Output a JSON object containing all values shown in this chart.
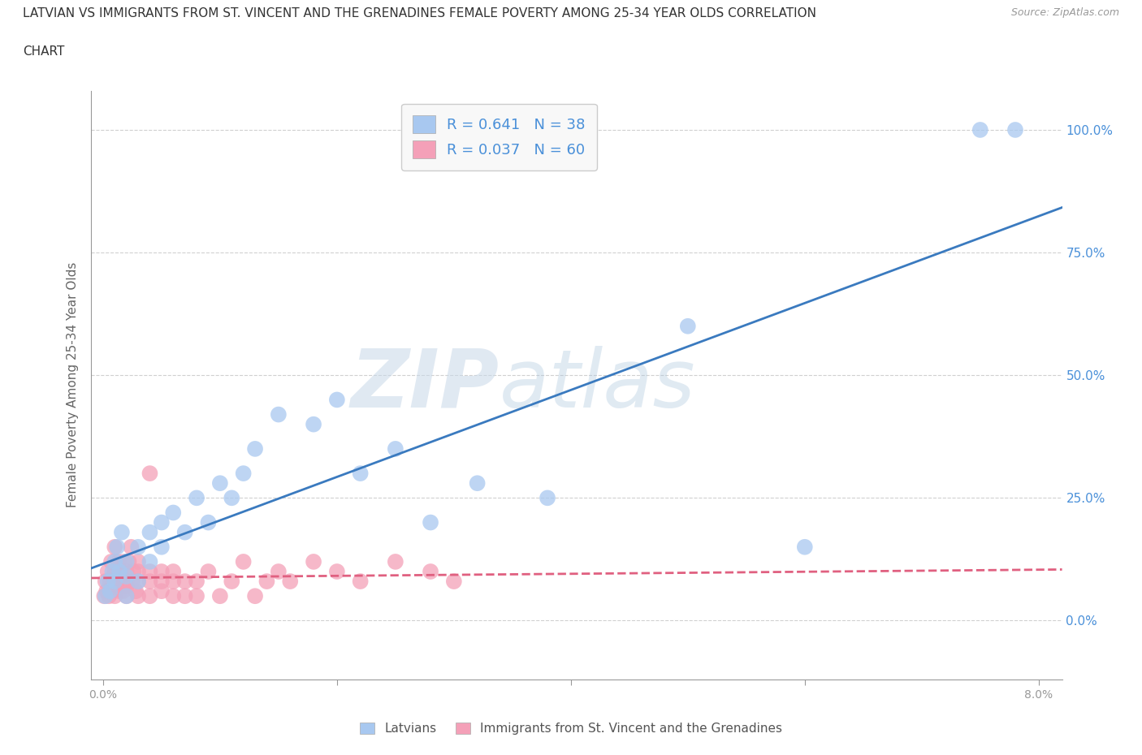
{
  "title_line1": "LATVIAN VS IMMIGRANTS FROM ST. VINCENT AND THE GRENADINES FEMALE POVERTY AMONG 25-34 YEAR OLDS CORRELATION",
  "title_line2": "CHART",
  "source": "Source: ZipAtlas.com",
  "ylabel": "Female Poverty Among 25-34 Year Olds",
  "xlabel_latvians": "Latvians",
  "xlabel_immigrants": "Immigrants from St. Vincent and the Grenadines",
  "xlim": [
    -0.001,
    0.082
  ],
  "ylim": [
    -0.12,
    1.08
  ],
  "yticks": [
    0.0,
    0.25,
    0.5,
    0.75,
    1.0
  ],
  "xtick_positions": [
    0.0,
    0.02,
    0.04,
    0.06,
    0.08
  ],
  "xtick_labels": [
    "0.0%",
    "",
    "",
    "",
    "8.0%"
  ],
  "blue_color": "#a8c8f0",
  "blue_line_color": "#3a7abf",
  "pink_color": "#f4a0b8",
  "pink_line_color": "#e06080",
  "R_latvian": 0.641,
  "N_latvian": 38,
  "R_immigrant": 0.037,
  "N_immigrant": 60,
  "latvian_x": [
    0.0002,
    0.0004,
    0.0006,
    0.0008,
    0.001,
    0.001,
    0.0012,
    0.0014,
    0.0016,
    0.002,
    0.002,
    0.002,
    0.003,
    0.003,
    0.004,
    0.004,
    0.005,
    0.005,
    0.006,
    0.007,
    0.008,
    0.009,
    0.01,
    0.011,
    0.012,
    0.013,
    0.015,
    0.018,
    0.02,
    0.022,
    0.025,
    0.028,
    0.032,
    0.038,
    0.05,
    0.06,
    0.075,
    0.078
  ],
  "latvian_y": [
    0.05,
    0.08,
    0.06,
    0.1,
    0.12,
    0.08,
    0.15,
    0.1,
    0.18,
    0.05,
    0.12,
    0.09,
    0.15,
    0.08,
    0.18,
    0.12,
    0.2,
    0.15,
    0.22,
    0.18,
    0.25,
    0.2,
    0.28,
    0.25,
    0.3,
    0.35,
    0.42,
    0.4,
    0.45,
    0.3,
    0.35,
    0.2,
    0.28,
    0.25,
    0.6,
    0.15,
    1.0,
    1.0
  ],
  "immigrant_x": [
    0.0001,
    0.0002,
    0.0003,
    0.0004,
    0.0005,
    0.0006,
    0.0007,
    0.0008,
    0.0009,
    0.001,
    0.001,
    0.001,
    0.0012,
    0.0013,
    0.0014,
    0.0015,
    0.0016,
    0.0017,
    0.0018,
    0.002,
    0.002,
    0.002,
    0.002,
    0.0022,
    0.0024,
    0.0025,
    0.0026,
    0.0028,
    0.003,
    0.003,
    0.003,
    0.003,
    0.004,
    0.004,
    0.004,
    0.004,
    0.005,
    0.005,
    0.005,
    0.006,
    0.006,
    0.006,
    0.007,
    0.007,
    0.008,
    0.008,
    0.009,
    0.01,
    0.011,
    0.012,
    0.013,
    0.014,
    0.015,
    0.016,
    0.018,
    0.02,
    0.022,
    0.025,
    0.028,
    0.03
  ],
  "immigrant_y": [
    0.05,
    0.08,
    0.06,
    0.1,
    0.05,
    0.08,
    0.12,
    0.07,
    0.09,
    0.05,
    0.1,
    0.15,
    0.08,
    0.12,
    0.06,
    0.1,
    0.08,
    0.06,
    0.12,
    0.05,
    0.08,
    0.1,
    0.07,
    0.12,
    0.15,
    0.08,
    0.1,
    0.06,
    0.05,
    0.1,
    0.08,
    0.12,
    0.05,
    0.08,
    0.1,
    0.3,
    0.1,
    0.08,
    0.06,
    0.05,
    0.08,
    0.1,
    0.05,
    0.08,
    0.05,
    0.08,
    0.1,
    0.05,
    0.08,
    0.12,
    0.05,
    0.08,
    0.1,
    0.08,
    0.12,
    0.1,
    0.08,
    0.12,
    0.1,
    0.08
  ],
  "grid_color": "#d0d0d0",
  "bg_color": "#ffffff",
  "right_label_color": "#4a90d9",
  "legend_box_color": "#f8f8f8",
  "title_color": "#333333",
  "axis_color": "#999999"
}
